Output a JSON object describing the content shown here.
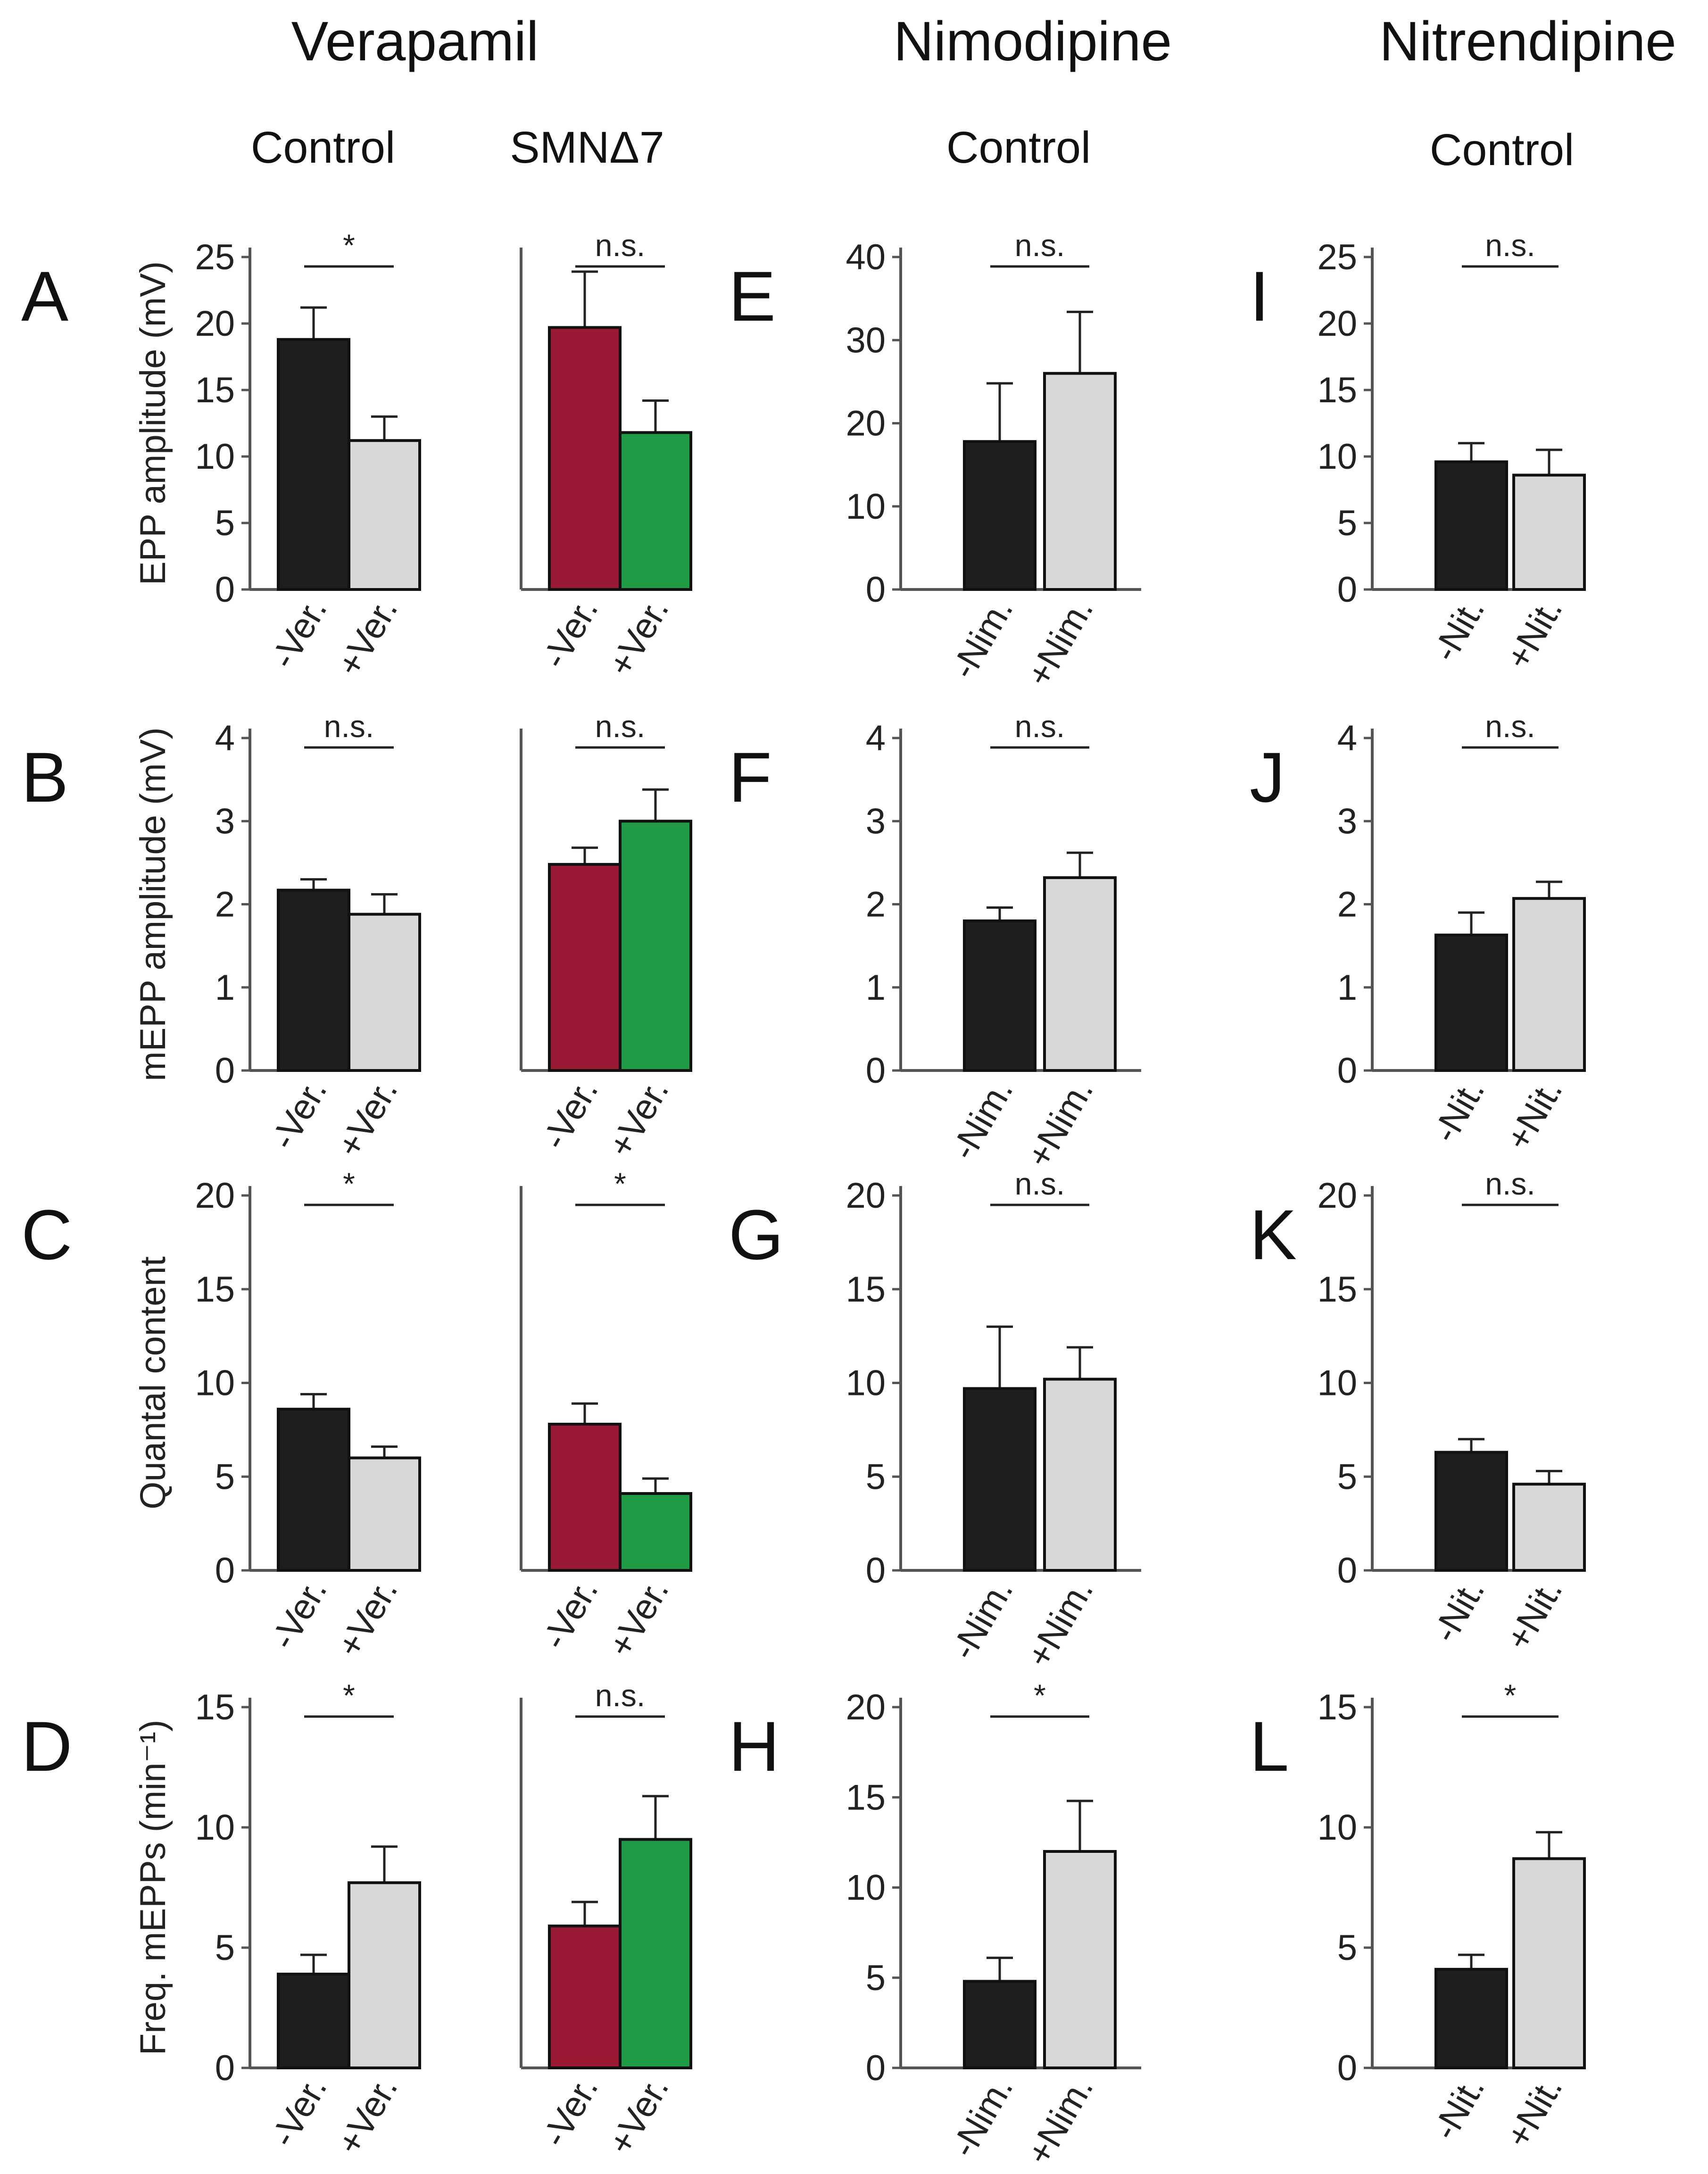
{
  "figure": {
    "group_titles": [
      "Verapamil",
      "Nimodipine",
      "Nitrendipine"
    ],
    "subtitles": [
      "Control",
      "SMNΔ7",
      "Control",
      "Control"
    ]
  },
  "colors": {
    "minus_control": "#1e1e1e",
    "plus_control": "#d8d8d8",
    "minus_smn": "#9a1a34",
    "plus_smn": "#1f9a45"
  },
  "chart_data": [
    {
      "type": "bar",
      "letter": "A",
      "row": 0,
      "col": 0,
      "ylabel": "EPP amplitude (mV)",
      "ylim": [
        0,
        25
      ],
      "ticks": [
        0,
        5,
        10,
        15,
        20,
        25
      ],
      "categories": [
        "-Ver.",
        "+Ver."
      ],
      "values": [
        18.8,
        11.2
      ],
      "errors": [
        2.4,
        1.8
      ],
      "colors": [
        "minus_control",
        "plus_control"
      ],
      "sig": "*"
    },
    {
      "type": "bar",
      "letter": "",
      "row": 0,
      "col": 1,
      "ylabel": "",
      "ylim": [
        0,
        25
      ],
      "ticks": [],
      "categories": [
        "-Ver.",
        "+Ver."
      ],
      "values": [
        19.7,
        11.8
      ],
      "errors": [
        4.2,
        2.4
      ],
      "colors": [
        "minus_smn",
        "plus_smn"
      ],
      "sig": "n.s."
    },
    {
      "type": "bar",
      "letter": "E",
      "row": 0,
      "col": 2,
      "ylabel": "",
      "ylim": [
        0,
        40
      ],
      "ticks": [
        0,
        10,
        20,
        30,
        40
      ],
      "categories": [
        "-Nim.",
        "+Nim."
      ],
      "values": [
        17.8,
        26.0
      ],
      "errors": [
        7.0,
        7.4
      ],
      "colors": [
        "minus_control",
        "plus_control"
      ],
      "sig": "n.s."
    },
    {
      "type": "bar",
      "letter": "I",
      "row": 0,
      "col": 3,
      "ylabel": "",
      "ylim": [
        0,
        25
      ],
      "ticks": [
        0,
        5,
        10,
        15,
        20,
        25
      ],
      "categories": [
        "-Nit.",
        "+Nit."
      ],
      "values": [
        9.6,
        8.6
      ],
      "errors": [
        1.4,
        1.9
      ],
      "colors": [
        "minus_control",
        "plus_control"
      ],
      "sig": "n.s."
    },
    {
      "type": "bar",
      "letter": "B",
      "row": 1,
      "col": 0,
      "ylabel": "mEPP amplitude (mV)",
      "ylim": [
        0,
        4
      ],
      "ticks": [
        0,
        1,
        2,
        3,
        4
      ],
      "categories": [
        "-Ver.",
        "+Ver."
      ],
      "values": [
        2.17,
        1.88
      ],
      "errors": [
        0.13,
        0.24
      ],
      "colors": [
        "minus_control",
        "plus_control"
      ],
      "sig": "n.s."
    },
    {
      "type": "bar",
      "letter": "",
      "row": 1,
      "col": 1,
      "ylabel": "",
      "ylim": [
        0,
        4
      ],
      "ticks": [],
      "categories": [
        "-Ver.",
        "+Ver."
      ],
      "values": [
        2.48,
        3.0
      ],
      "errors": [
        0.2,
        0.38
      ],
      "colors": [
        "minus_smn",
        "plus_smn"
      ],
      "sig": "n.s."
    },
    {
      "type": "bar",
      "letter": "F",
      "row": 1,
      "col": 2,
      "ylabel": "",
      "ylim": [
        0,
        4
      ],
      "ticks": [
        0,
        1,
        2,
        3,
        4
      ],
      "categories": [
        "-Nim.",
        "+Nim."
      ],
      "values": [
        1.8,
        2.32
      ],
      "errors": [
        0.16,
        0.3
      ],
      "colors": [
        "minus_control",
        "plus_control"
      ],
      "sig": "n.s."
    },
    {
      "type": "bar",
      "letter": "J",
      "row": 1,
      "col": 3,
      "ylabel": "",
      "ylim": [
        0,
        4
      ],
      "ticks": [
        0,
        1,
        2,
        3,
        4
      ],
      "categories": [
        "-Nit.",
        "+Nit."
      ],
      "values": [
        1.63,
        2.07
      ],
      "errors": [
        0.27,
        0.2
      ],
      "colors": [
        "minus_control",
        "plus_control"
      ],
      "sig": "n.s."
    },
    {
      "type": "bar",
      "letter": "C",
      "row": 2,
      "col": 0,
      "ylabel": "Quantal content",
      "ylim": [
        0,
        20
      ],
      "ticks": [
        0,
        5,
        10,
        15,
        20
      ],
      "categories": [
        "-Ver.",
        "+Ver."
      ],
      "values": [
        8.6,
        6.0
      ],
      "errors": [
        0.8,
        0.6
      ],
      "colors": [
        "minus_control",
        "plus_control"
      ],
      "sig": "*"
    },
    {
      "type": "bar",
      "letter": "",
      "row": 2,
      "col": 1,
      "ylabel": "",
      "ylim": [
        0,
        20
      ],
      "ticks": [],
      "categories": [
        "-Ver.",
        "+Ver."
      ],
      "values": [
        7.8,
        4.1
      ],
      "errors": [
        1.1,
        0.8
      ],
      "colors": [
        "minus_smn",
        "plus_smn"
      ],
      "sig": "*"
    },
    {
      "type": "bar",
      "letter": "G",
      "row": 2,
      "col": 2,
      "ylabel": "",
      "ylim": [
        0,
        20
      ],
      "ticks": [
        0,
        5,
        10,
        15,
        20
      ],
      "categories": [
        "-Nim.",
        "+Nim."
      ],
      "values": [
        9.7,
        10.2
      ],
      "errors": [
        3.3,
        1.7
      ],
      "colors": [
        "minus_control",
        "plus_control"
      ],
      "sig": "n.s."
    },
    {
      "type": "bar",
      "letter": "K",
      "row": 2,
      "col": 3,
      "ylabel": "",
      "ylim": [
        0,
        20
      ],
      "ticks": [
        0,
        5,
        10,
        15,
        20
      ],
      "categories": [
        "-Nit.",
        "+Nit."
      ],
      "values": [
        6.3,
        4.6
      ],
      "errors": [
        0.7,
        0.7
      ],
      "colors": [
        "minus_control",
        "plus_control"
      ],
      "sig": "n.s."
    },
    {
      "type": "bar",
      "letter": "D",
      "row": 3,
      "col": 0,
      "ylabel": "Freq. mEPPs (min⁻¹)",
      "ylim": [
        0,
        15
      ],
      "ticks": [
        0,
        5,
        10,
        15
      ],
      "categories": [
        "-Ver.",
        "+Ver."
      ],
      "values": [
        3.9,
        7.7
      ],
      "errors": [
        0.8,
        1.5
      ],
      "colors": [
        "minus_control",
        "plus_control"
      ],
      "sig": "*"
    },
    {
      "type": "bar",
      "letter": "",
      "row": 3,
      "col": 1,
      "ylabel": "",
      "ylim": [
        0,
        15
      ],
      "ticks": [],
      "categories": [
        "-Ver.",
        "+Ver."
      ],
      "values": [
        5.9,
        9.5
      ],
      "errors": [
        1.0,
        1.8
      ],
      "colors": [
        "minus_smn",
        "plus_smn"
      ],
      "sig": "n.s."
    },
    {
      "type": "bar",
      "letter": "H",
      "row": 3,
      "col": 2,
      "ylabel": "",
      "ylim": [
        0,
        20
      ],
      "ticks": [
        0,
        5,
        10,
        15,
        20
      ],
      "categories": [
        "-Nim.",
        "+Nim."
      ],
      "values": [
        4.8,
        12.0
      ],
      "errors": [
        1.3,
        2.8
      ],
      "colors": [
        "minus_control",
        "plus_control"
      ],
      "sig": "*"
    },
    {
      "type": "bar",
      "letter": "L",
      "row": 3,
      "col": 3,
      "ylabel": "",
      "ylim": [
        0,
        15
      ],
      "ticks": [
        0,
        5,
        10,
        15
      ],
      "categories": [
        "-Nit.",
        "+Nit."
      ],
      "values": [
        4.1,
        8.7
      ],
      "errors": [
        0.6,
        1.1
      ],
      "colors": [
        "minus_control",
        "plus_control"
      ],
      "sig": "*"
    }
  ]
}
